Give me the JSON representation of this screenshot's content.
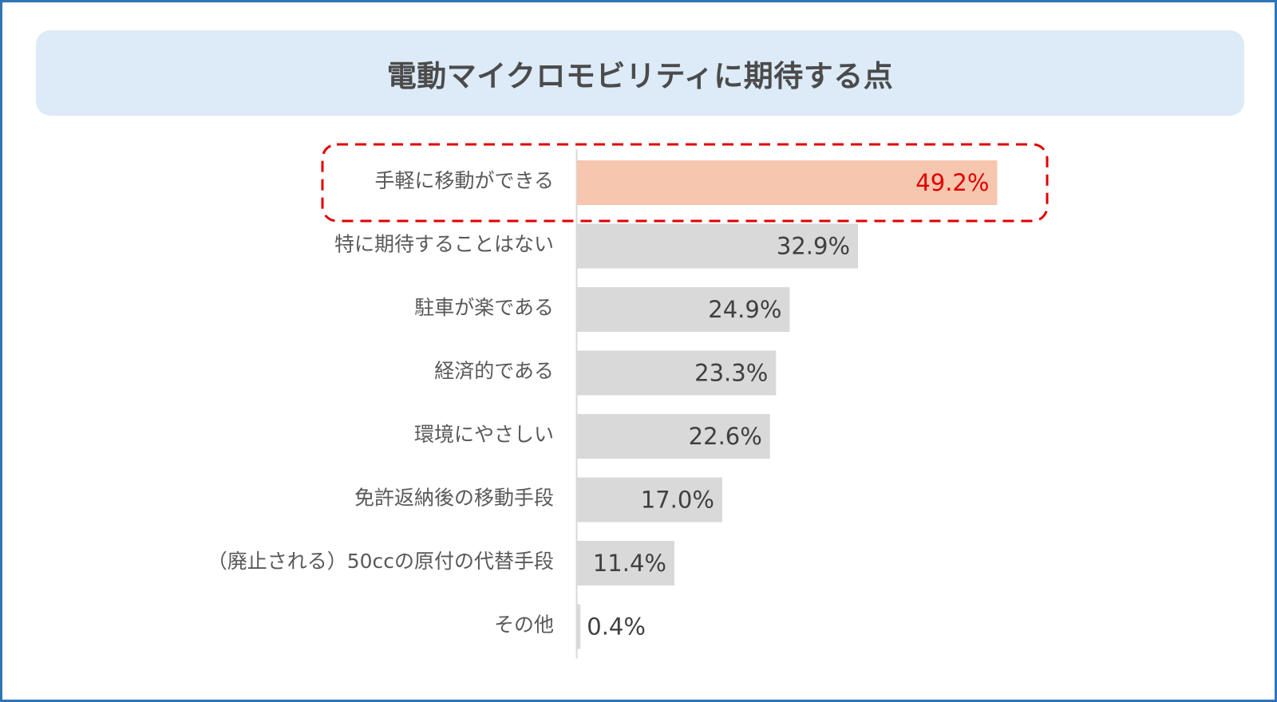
{
  "chart_data": {
    "type": "bar",
    "orientation": "horizontal",
    "title": "電動マイクロモビリティに期待する点",
    "categories": [
      "手軽に移動ができる",
      "特に期待することはない",
      "駐車が楽である",
      "経済的である",
      "環境にやさしい",
      "免許返納後の移動手段",
      "（廃止される）50ccの原付の代替手段",
      "その他"
    ],
    "values": [
      49.2,
      32.9,
      24.9,
      23.3,
      22.6,
      17.0,
      11.4,
      0.4
    ],
    "value_labels": [
      "49.2%",
      "32.9%",
      "24.9%",
      "23.3%",
      "22.6%",
      "17.0%",
      "11.4%",
      "0.4%"
    ],
    "unit": "%",
    "xlim": [
      0,
      100
    ],
    "highlight_index": 0,
    "colors": {
      "bar": "#d9d9d9",
      "highlight_bar": "#f6c6ae",
      "highlight_text": "#e00000",
      "highlight_border": "#e00000",
      "axis": "#d9d9d9",
      "label_text": "#595959",
      "value_text": "#404040"
    }
  }
}
